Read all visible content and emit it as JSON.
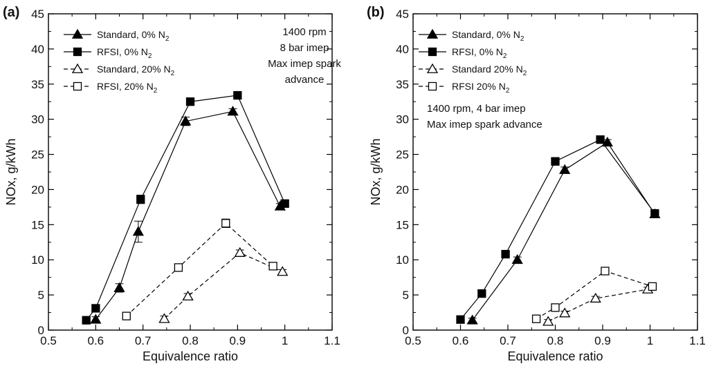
{
  "figure": {
    "panel_count": 2
  },
  "chart_data": [
    {
      "type": "line",
      "panel_label": "(a)",
      "xlabel": "Equivalence ratio",
      "ylabel": "NOx, g/kWh",
      "xlim": [
        0.5,
        1.1
      ],
      "ylim": [
        0,
        45
      ],
      "xticks": [
        "0.5",
        "0.6",
        "0.7",
        "0.8",
        "0.9",
        "1",
        "1.1"
      ],
      "yticks": [
        "0",
        "5",
        "10",
        "15",
        "20",
        "25",
        "30",
        "35",
        "40",
        "45"
      ],
      "grid": false,
      "legend_position": "top-left",
      "annotation": [
        "1400 rpm",
        "8 bar imep",
        "Max imep spark",
        "advance"
      ],
      "series": [
        {
          "name": "Standard, 0% N2",
          "marker": "triangle-filled",
          "line": "solid",
          "x": [
            0.6,
            0.65,
            0.69,
            0.79,
            0.89,
            0.99
          ],
          "y": [
            1.5,
            6.0,
            14.0,
            29.7,
            31.1,
            17.6
          ],
          "err": [
            0.4,
            0.6,
            1.5,
            0.6,
            0.4,
            0.4
          ]
        },
        {
          "name": "RFSI, 0% N2",
          "marker": "square-filled",
          "line": "solid",
          "x": [
            0.58,
            0.6,
            0.695,
            0.8,
            0.9,
            1.0
          ],
          "y": [
            1.4,
            3.1,
            18.6,
            32.5,
            33.4,
            18.0
          ],
          "err": [
            0.3,
            0.4,
            0.6,
            0.4,
            0.3,
            0.4
          ]
        },
        {
          "name": "Standard, 20% N2",
          "marker": "triangle-open",
          "line": "dashed",
          "x": [
            0.745,
            0.795,
            0.905,
            0.995
          ],
          "y": [
            1.6,
            4.8,
            11.0,
            8.3
          ],
          "err": [
            0.4,
            0.4,
            0.4,
            0.3
          ]
        },
        {
          "name": "RFSI, 20% N2",
          "marker": "square-open",
          "line": "dashed",
          "x": [
            0.665,
            0.775,
            0.875,
            0.975
          ],
          "y": [
            2.0,
            8.9,
            15.2,
            9.1
          ],
          "err": [
            0.3,
            0.4,
            0.6,
            0.4
          ]
        }
      ]
    },
    {
      "type": "line",
      "panel_label": "(b)",
      "xlabel": "Equivalence ratio",
      "ylabel": "NOx, g/kWh",
      "xlim": [
        0.5,
        1.1
      ],
      "ylim": [
        0,
        45
      ],
      "xticks": [
        "0.5",
        "0.6",
        "0.7",
        "0.8",
        "0.9",
        "1",
        "1.1"
      ],
      "yticks": [
        "0",
        "5",
        "10",
        "15",
        "20",
        "25",
        "30",
        "35",
        "40",
        "45"
      ],
      "grid": false,
      "legend_position": "top-left",
      "annotation": [
        "1400 rpm, 4 bar imep",
        "Max imep spark advance"
      ],
      "series": [
        {
          "name": "Standard, 0% N2",
          "marker": "triangle-filled",
          "line": "solid",
          "x": [
            0.625,
            0.72,
            0.82,
            0.91,
            1.01
          ],
          "y": [
            1.4,
            10.0,
            22.8,
            26.7,
            16.5
          ],
          "err": [
            0.3,
            0.4,
            0.4,
            0.4,
            0.3
          ]
        },
        {
          "name": "RFSI, 0% N2",
          "marker": "square-filled",
          "line": "solid",
          "x": [
            0.6,
            0.645,
            0.695,
            0.8,
            0.895,
            1.01
          ],
          "y": [
            1.5,
            5.2,
            10.8,
            24.0,
            27.1,
            16.6
          ],
          "err": [
            0.3,
            0.3,
            0.3,
            0.3,
            0.3,
            0.3
          ]
        },
        {
          "name": "Standard 20% N2",
          "marker": "triangle-open",
          "line": "dashed",
          "x": [
            0.785,
            0.82,
            0.885,
            0.995
          ],
          "y": [
            1.2,
            2.4,
            4.5,
            5.8
          ],
          "err": [
            0.3,
            0.3,
            0.3,
            0.3
          ]
        },
        {
          "name": "RFSI 20% N2",
          "marker": "square-open",
          "line": "dashed",
          "x": [
            0.76,
            0.8,
            0.905,
            1.005
          ],
          "y": [
            1.6,
            3.2,
            8.4,
            6.2
          ],
          "err": [
            0.3,
            0.3,
            0.3,
            0.3
          ]
        }
      ]
    }
  ]
}
